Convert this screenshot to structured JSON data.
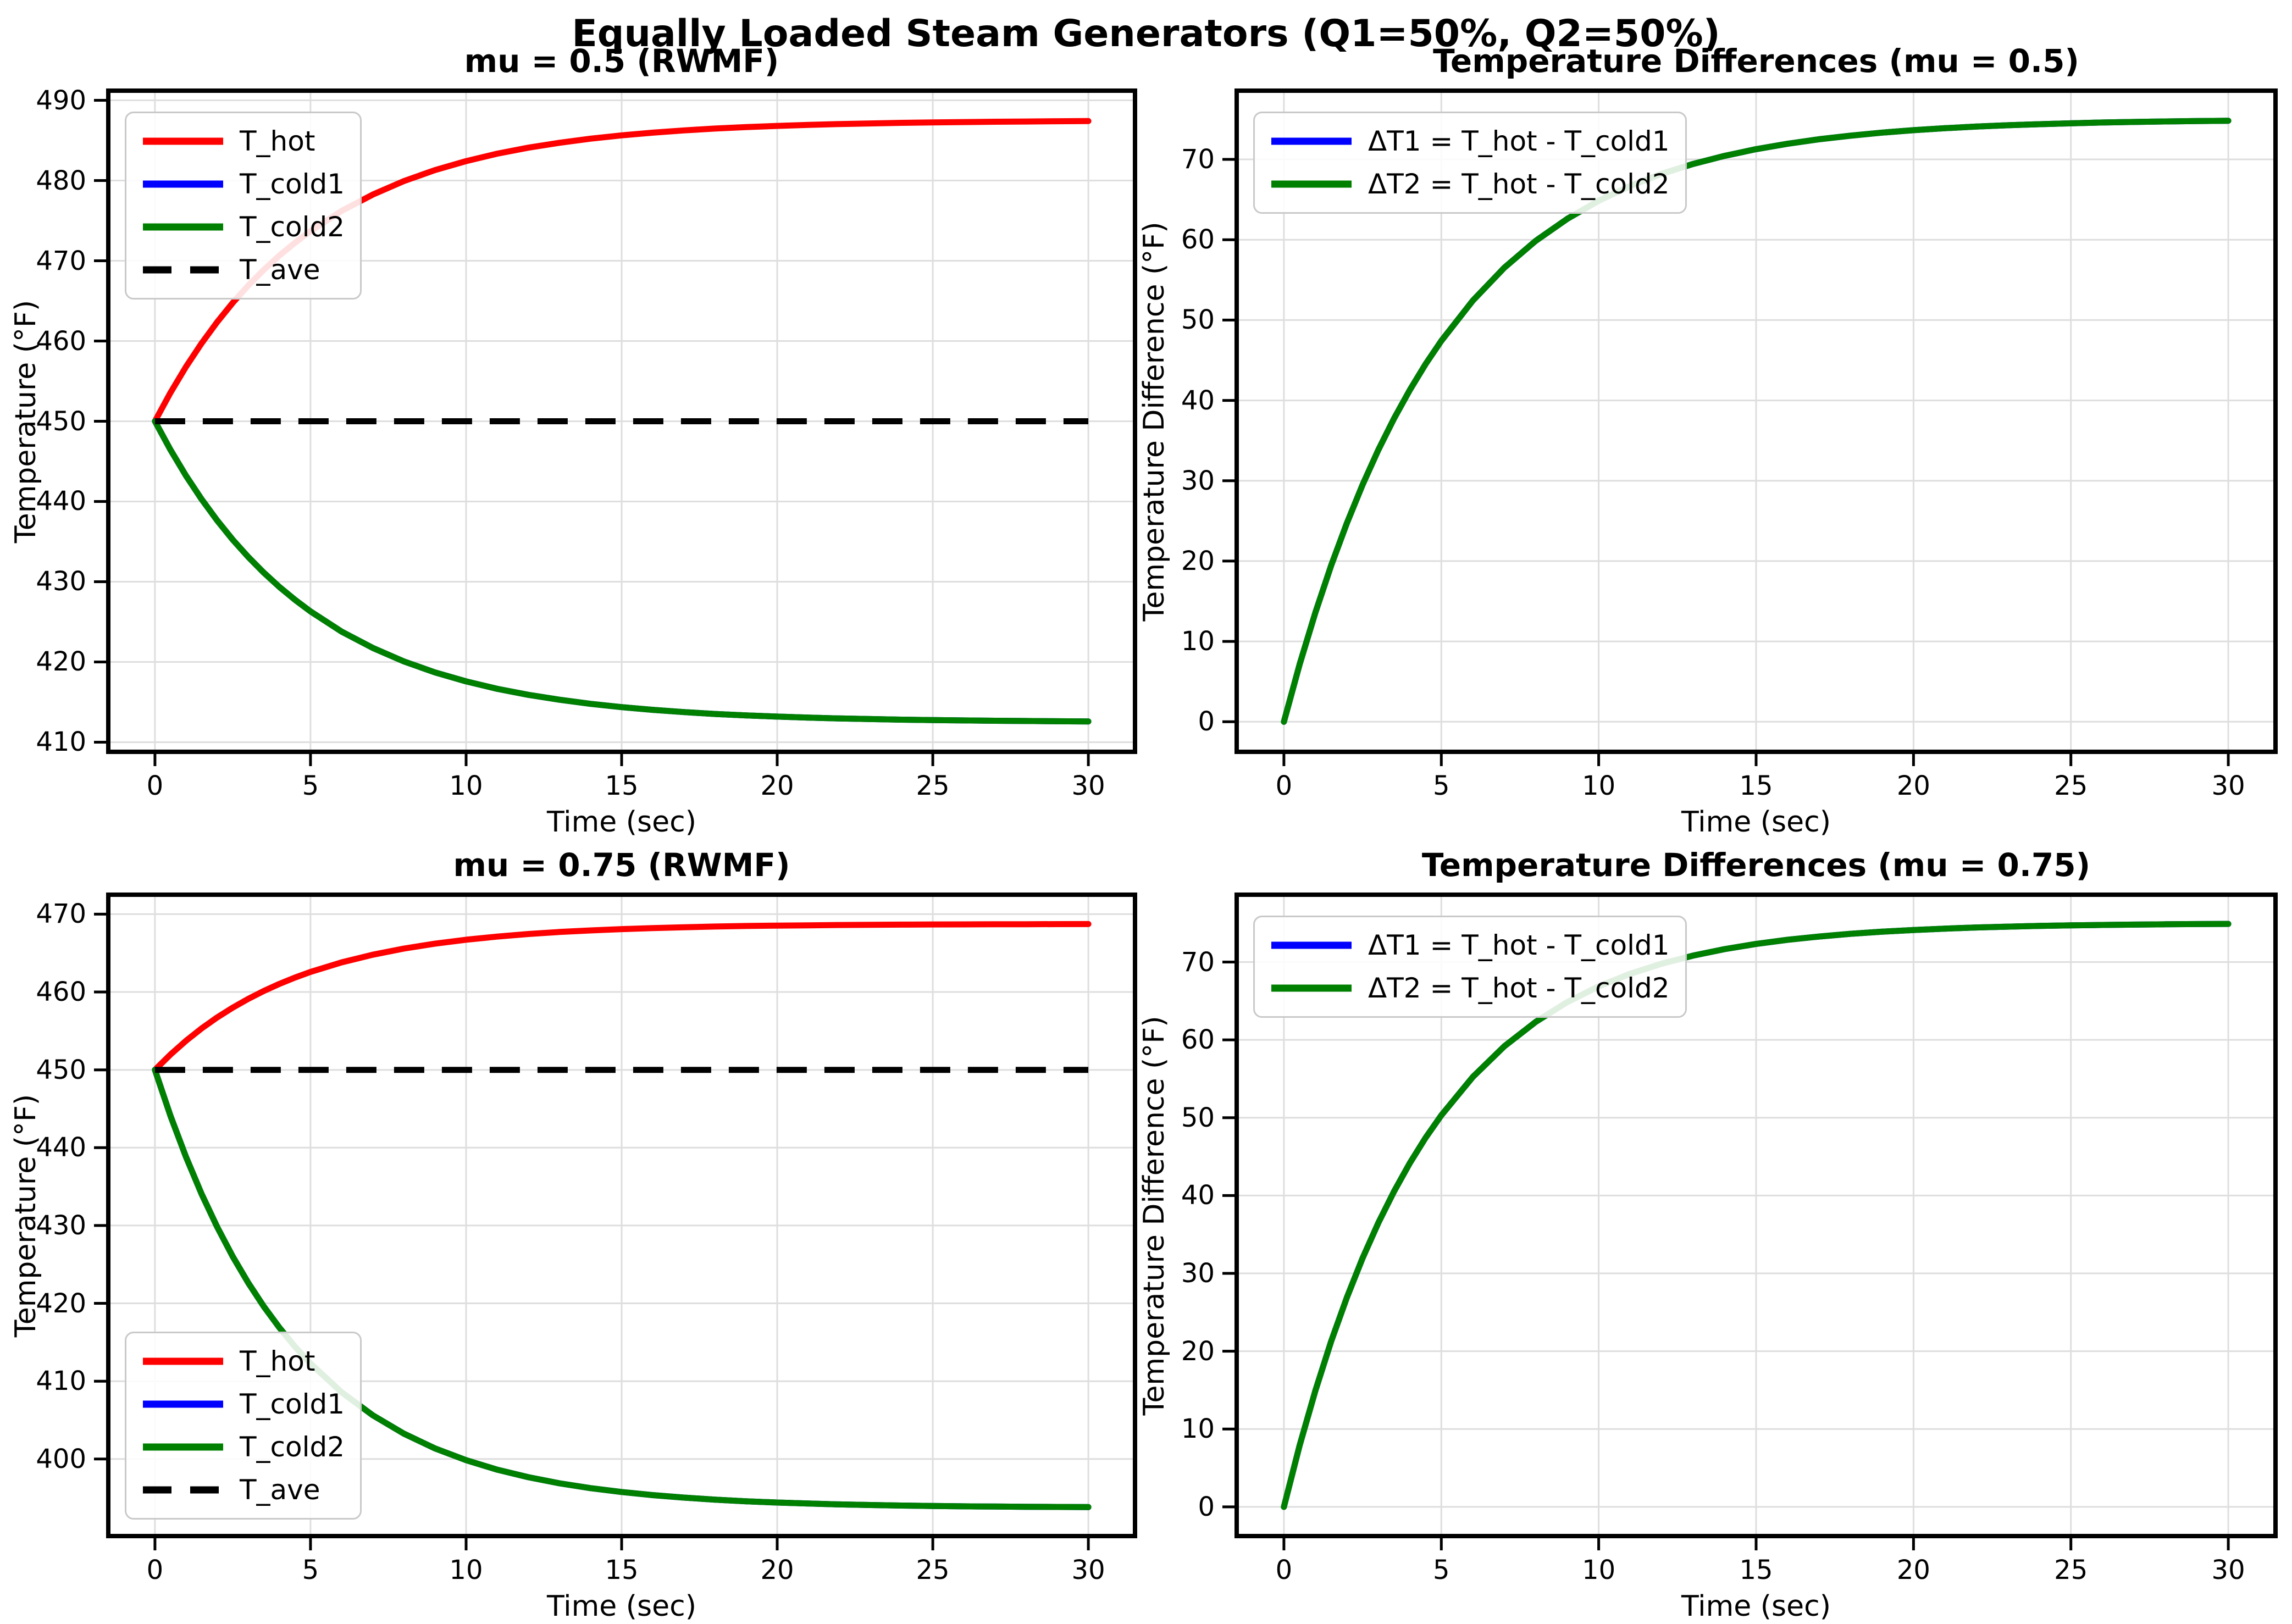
{
  "figure": {
    "suptitle": "Equally Loaded Steam Generators (Q1=50%, Q2=50%)",
    "background": "#ffffff",
    "grid_color": "#dedede",
    "spine_color": "#000000"
  },
  "chart_data": [
    {
      "type": "line",
      "title": "mu = 0.5 (RWMF)",
      "xlabel": "Time (sec)",
      "ylabel": "Temperature (°F)",
      "xlim": [
        -1.5,
        31.5
      ],
      "ylim": [
        408.8,
        491.2
      ],
      "xticks": [
        0,
        5,
        10,
        15,
        20,
        25,
        30
      ],
      "yticks": [
        410,
        420,
        430,
        440,
        450,
        460,
        470,
        480,
        490
      ],
      "grid": true,
      "legend_loc": "upper left",
      "x": [
        0,
        0.5,
        1,
        1.5,
        2,
        2.5,
        3,
        3.5,
        4,
        4.5,
        5,
        6,
        7,
        8,
        9,
        10,
        11,
        12,
        13,
        14,
        15,
        16,
        17,
        18,
        19,
        20,
        21,
        22,
        23,
        24,
        25,
        26,
        27,
        28,
        29,
        30
      ],
      "series": [
        {
          "name": "T_hot",
          "color": "#ff0000",
          "style": "solid",
          "values": [
            450,
            453.57,
            456.8,
            459.72,
            462.36,
            464.76,
            466.92,
            468.88,
            470.65,
            472.25,
            473.7,
            476.21,
            478.25,
            479.93,
            481.3,
            482.42,
            483.35,
            484.1,
            484.71,
            485.22,
            485.63,
            485.97,
            486.25,
            486.48,
            486.66,
            486.81,
            486.94,
            487.04,
            487.12,
            487.19,
            487.25,
            487.29,
            487.33,
            487.36,
            487.39,
            487.41
          ]
        },
        {
          "name": "T_cold1",
          "color": "#0000ff",
          "style": "solid",
          "values": [
            450,
            446.43,
            443.2,
            440.28,
            437.64,
            435.24,
            433.08,
            431.12,
            429.35,
            427.75,
            426.3,
            423.79,
            421.75,
            420.07,
            418.7,
            417.58,
            416.65,
            415.9,
            415.29,
            414.78,
            414.37,
            414.03,
            413.75,
            413.52,
            413.34,
            413.19,
            413.06,
            412.96,
            412.88,
            412.81,
            412.75,
            412.71,
            412.67,
            412.64,
            412.61,
            412.59
          ]
        },
        {
          "name": "T_cold2",
          "color": "#008000",
          "style": "solid",
          "values": [
            450,
            446.43,
            443.2,
            440.28,
            437.64,
            435.24,
            433.08,
            431.12,
            429.35,
            427.75,
            426.3,
            423.79,
            421.75,
            420.07,
            418.7,
            417.58,
            416.65,
            415.9,
            415.29,
            414.78,
            414.37,
            414.03,
            413.75,
            413.52,
            413.34,
            413.19,
            413.06,
            412.96,
            412.88,
            412.81,
            412.75,
            412.71,
            412.67,
            412.64,
            412.61,
            412.59
          ]
        },
        {
          "name": "T_ave",
          "color": "#000000",
          "style": "dashed",
          "values": [
            450,
            450,
            450,
            450,
            450,
            450,
            450,
            450,
            450,
            450,
            450,
            450,
            450,
            450,
            450,
            450,
            450,
            450,
            450,
            450,
            450,
            450,
            450,
            450,
            450,
            450,
            450,
            450,
            450,
            450,
            450,
            450,
            450,
            450,
            450,
            450
          ]
        }
      ]
    },
    {
      "type": "line",
      "title": "Temperature Differences (mu = 0.5)",
      "xlabel": "Time (sec)",
      "ylabel": "Temperature Difference (°F)",
      "xlim": [
        -1.5,
        31.5
      ],
      "ylim": [
        -3.74,
        78.55
      ],
      "xticks": [
        0,
        5,
        10,
        15,
        20,
        25,
        30
      ],
      "yticks": [
        0,
        10,
        20,
        30,
        40,
        50,
        60,
        70
      ],
      "grid": true,
      "legend_loc": "upper left",
      "x": [
        0,
        0.5,
        1,
        1.5,
        2,
        2.5,
        3,
        3.5,
        4,
        4.5,
        5,
        6,
        7,
        8,
        9,
        10,
        11,
        12,
        13,
        14,
        15,
        16,
        17,
        18,
        19,
        20,
        21,
        22,
        23,
        24,
        25,
        26,
        27,
        28,
        29,
        30
      ],
      "series": [
        {
          "name": "ΔT1 = T_hot - T_cold1",
          "color": "#0000ff",
          "style": "solid",
          "values": [
            0,
            7.14,
            13.6,
            19.44,
            24.73,
            29.51,
            33.84,
            37.76,
            41.3,
            44.51,
            47.41,
            52.41,
            56.51,
            59.86,
            62.6,
            64.85,
            66.69,
            68.2,
            69.43,
            70.44,
            71.27,
            71.94,
            72.5,
            72.95,
            73.33,
            73.63,
            73.88,
            74.08,
            74.25,
            74.38,
            74.49,
            74.59,
            74.66,
            74.72,
            74.77,
            74.81
          ]
        },
        {
          "name": "ΔT2 = T_hot - T_cold2",
          "color": "#008000",
          "style": "solid",
          "values": [
            0,
            7.14,
            13.6,
            19.44,
            24.73,
            29.51,
            33.84,
            37.76,
            41.3,
            44.51,
            47.41,
            52.41,
            56.51,
            59.86,
            62.6,
            64.85,
            66.69,
            68.2,
            69.43,
            70.44,
            71.27,
            71.94,
            72.5,
            72.95,
            73.33,
            73.63,
            73.88,
            74.08,
            74.25,
            74.38,
            74.49,
            74.59,
            74.66,
            74.72,
            74.77,
            74.81
          ]
        }
      ]
    },
    {
      "type": "line",
      "title": "mu = 0.75 (RWMF)",
      "xlabel": "Time (sec)",
      "ylabel": "Temperature (°F)",
      "xlim": [
        -1.5,
        31.5
      ],
      "ylim": [
        390.1,
        472.5
      ],
      "xticks": [
        0,
        5,
        10,
        15,
        20,
        25,
        30
      ],
      "yticks": [
        400,
        410,
        420,
        430,
        440,
        450,
        460,
        470
      ],
      "grid": true,
      "legend_loc": "lower left",
      "x": [
        0,
        0.5,
        1,
        1.5,
        2,
        2.5,
        3,
        3.5,
        4,
        4.5,
        5,
        6,
        7,
        8,
        9,
        10,
        11,
        12,
        13,
        14,
        15,
        16,
        17,
        18,
        19,
        20,
        21,
        22,
        23,
        24,
        25,
        26,
        27,
        28,
        29,
        30
      ],
      "series": [
        {
          "name": "T_hot",
          "color": "#ff0000",
          "style": "solid",
          "values": [
            450,
            451.97,
            453.74,
            455.32,
            456.73,
            457.99,
            459.12,
            460.14,
            461.04,
            461.85,
            462.58,
            463.81,
            464.79,
            465.58,
            466.21,
            466.72,
            467.12,
            467.45,
            467.71,
            467.91,
            468.08,
            468.21,
            468.32,
            468.41,
            468.48,
            468.53,
            468.57,
            468.61,
            468.64,
            468.66,
            468.68,
            468.69,
            468.7,
            468.71,
            468.72,
            468.73
          ]
        },
        {
          "name": "T_cold1",
          "color": "#0000ff",
          "style": "solid",
          "values": [
            450,
            444.08,
            438.79,
            434.05,
            429.82,
            426.02,
            422.63,
            419.59,
            416.88,
            414.44,
            412.27,
            408.58,
            405.62,
            403.26,
            401.36,
            399.85,
            398.63,
            397.66,
            396.88,
            396.26,
            395.76,
            395.36,
            395.04,
            394.78,
            394.57,
            394.41,
            394.28,
            394.17,
            394.09,
            394.02,
            393.97,
            393.92,
            393.89,
            393.86,
            393.84,
            393.82
          ]
        },
        {
          "name": "T_cold2",
          "color": "#008000",
          "style": "solid",
          "values": [
            450,
            444.08,
            438.79,
            434.05,
            429.82,
            426.02,
            422.63,
            419.59,
            416.88,
            414.44,
            412.27,
            408.58,
            405.62,
            403.26,
            401.36,
            399.85,
            398.63,
            397.66,
            396.88,
            396.26,
            395.76,
            395.36,
            395.04,
            394.78,
            394.57,
            394.41,
            394.28,
            394.17,
            394.09,
            394.02,
            393.97,
            393.92,
            393.89,
            393.86,
            393.84,
            393.82
          ]
        },
        {
          "name": "T_ave",
          "color": "#000000",
          "style": "dashed",
          "values": [
            450,
            450,
            450,
            450,
            450,
            450,
            450,
            450,
            450,
            450,
            450,
            450,
            450,
            450,
            450,
            450,
            450,
            450,
            450,
            450,
            450,
            450,
            450,
            450,
            450,
            450,
            450,
            450,
            450,
            450,
            450,
            450,
            450,
            450,
            450,
            450
          ]
        }
      ]
    },
    {
      "type": "line",
      "title": "Temperature Differences (mu = 0.75)",
      "xlabel": "Time (sec)",
      "ylabel": "Temperature Difference (°F)",
      "xlim": [
        -1.5,
        31.5
      ],
      "ylim": [
        -3.75,
        78.65
      ],
      "xticks": [
        0,
        5,
        10,
        15,
        20,
        25,
        30
      ],
      "yticks": [
        0,
        10,
        20,
        30,
        40,
        50,
        60,
        70
      ],
      "grid": true,
      "legend_loc": "upper left",
      "x": [
        0,
        0.5,
        1,
        1.5,
        2,
        2.5,
        3,
        3.5,
        4,
        4.5,
        5,
        6,
        7,
        8,
        9,
        10,
        11,
        12,
        13,
        14,
        15,
        16,
        17,
        18,
        19,
        20,
        21,
        22,
        23,
        24,
        25,
        26,
        27,
        28,
        29,
        30
      ],
      "series": [
        {
          "name": "ΔT1 = T_hot - T_cold1",
          "color": "#0000ff",
          "style": "solid",
          "values": [
            0,
            7.89,
            14.94,
            21.26,
            26.91,
            31.97,
            36.49,
            40.54,
            44.17,
            47.41,
            50.31,
            55.23,
            59.17,
            62.32,
            64.85,
            66.87,
            68.49,
            69.79,
            70.83,
            71.66,
            72.32,
            72.86,
            73.28,
            73.63,
            73.9,
            74.12,
            74.29,
            74.44,
            74.55,
            74.64,
            74.71,
            74.77,
            74.81,
            74.85,
            74.88,
            74.9
          ]
        },
        {
          "name": "ΔT2 = T_hot - T_cold2",
          "color": "#008000",
          "style": "solid",
          "values": [
            0,
            7.89,
            14.94,
            21.26,
            26.91,
            31.97,
            36.49,
            40.54,
            44.17,
            47.41,
            50.31,
            55.23,
            59.17,
            62.32,
            64.85,
            66.87,
            68.49,
            69.79,
            70.83,
            71.66,
            72.32,
            72.86,
            73.28,
            73.63,
            73.9,
            74.12,
            74.29,
            74.44,
            74.55,
            74.64,
            74.71,
            74.77,
            74.81,
            74.85,
            74.88,
            74.9
          ]
        }
      ]
    }
  ]
}
